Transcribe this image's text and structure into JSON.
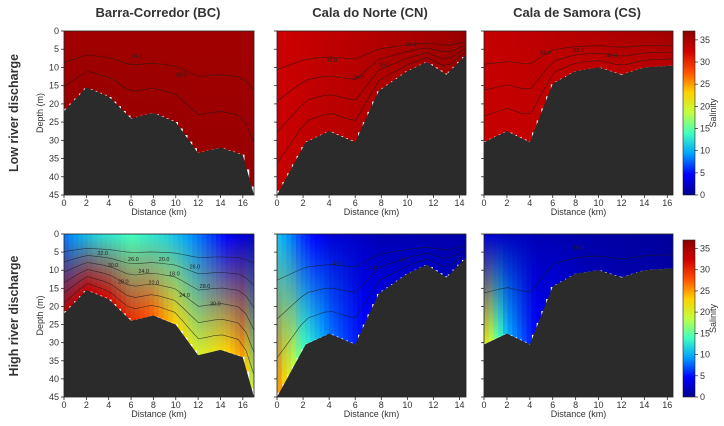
{
  "column_titles": [
    "Barra-Corredor (BC)",
    "Cala do Norte (CN)",
    "Cala de Samora (CS)"
  ],
  "row_labels": [
    "Low river discharge",
    "High river discharge"
  ],
  "colorbar": {
    "label": "Salinity",
    "ticks": [
      0,
      5,
      10,
      15,
      20,
      25,
      30,
      35
    ],
    "range": [
      0,
      37
    ],
    "colormap": [
      "#00008f",
      "#0000ff",
      "#00a0ff",
      "#40ffc0",
      "#c0ff40",
      "#ffd000",
      "#ff5000",
      "#d00000",
      "#8b0000"
    ]
  },
  "axes": {
    "xlabel": "Distance (km)",
    "ylabel": "Depth (m)",
    "ylim": [
      0,
      45
    ],
    "y_ticks": [
      0,
      5,
      10,
      15,
      20,
      25,
      30,
      35,
      40,
      45
    ],
    "bathymetry_color": "#2b2b2b"
  },
  "chart_data": [
    {
      "type": "heatmap",
      "section": "Barra-Corredor (BC)",
      "discharge": "Low river discharge",
      "xlim": [
        0,
        17
      ],
      "x_ticks": [
        0,
        2,
        4,
        6,
        8,
        10,
        12,
        14,
        16
      ],
      "bathymetry": {
        "x": [
          0,
          2,
          4,
          6,
          8,
          10,
          12,
          14,
          16,
          17
        ],
        "depth": [
          22,
          15.5,
          18,
          24,
          22.5,
          25,
          33.5,
          32,
          34,
          45
        ]
      },
      "salinity_surface": {
        "x": [
          0,
          17
        ],
        "values": [
          35.5,
          35.5
        ]
      },
      "salinity_bottom": {
        "x": [
          0,
          17
        ],
        "values": [
          36,
          36
        ]
      },
      "contour_labels": [
        "34.0",
        "34.0"
      ]
    },
    {
      "type": "heatmap",
      "section": "Cala do Norte (CN)",
      "discharge": "Low river discharge",
      "xlim": [
        0,
        14.5
      ],
      "x_ticks": [
        0,
        2,
        4,
        6,
        8,
        10,
        12,
        14
      ],
      "bathymetry": {
        "x": [
          0,
          2.2,
          4,
          6,
          7.8,
          10,
          11.5,
          13,
          14.5
        ],
        "depth": [
          45,
          30.5,
          27.5,
          30.5,
          16.5,
          11,
          8.5,
          12,
          6.5
        ]
      },
      "salinity_surface": {
        "x": [
          0,
          14.5
        ],
        "values": [
          32.5,
          36
        ]
      },
      "salinity_bottom": {
        "x": [
          0,
          14.5
        ],
        "values": [
          33,
          36
        ]
      },
      "contour_labels": [
        "33.0",
        "34.0",
        "35.0",
        "36.0"
      ]
    },
    {
      "type": "heatmap",
      "section": "Cala de Samora (CS)",
      "discharge": "Low river discharge",
      "xlim": [
        0,
        16.5
      ],
      "x_ticks": [
        0,
        2,
        4,
        6,
        8,
        10,
        12,
        14,
        16
      ],
      "bathymetry": {
        "x": [
          0,
          2,
          4,
          6,
          8,
          10,
          12,
          14,
          16.5
        ],
        "depth": [
          30.5,
          27.5,
          30.5,
          14.5,
          11,
          10,
          12,
          10,
          9.5
        ]
      },
      "salinity_surface": {
        "x": [
          0,
          16.5
        ],
        "values": [
          33,
          35.5
        ]
      },
      "salinity_bottom": {
        "x": [
          0,
          16.5
        ],
        "values": [
          33,
          34
        ]
      },
      "contour_labels": [
        "34.0",
        "33.0",
        "35.0"
      ]
    },
    {
      "type": "heatmap",
      "section": "Barra-Corredor (BC)",
      "discharge": "High river discharge",
      "xlim": [
        0,
        17
      ],
      "x_ticks": [
        0,
        2,
        4,
        6,
        8,
        10,
        12,
        14,
        16
      ],
      "bathymetry": {
        "x": [
          0,
          2,
          4,
          6,
          8,
          10,
          12,
          14,
          16,
          17
        ],
        "depth": [
          22,
          15.5,
          18,
          24,
          22.5,
          25,
          33.5,
          32,
          34,
          45
        ]
      },
      "salinity_surface": {
        "x": [
          0,
          3,
          6,
          9,
          12,
          15,
          17
        ],
        "values": [
          8,
          12,
          14,
          12,
          8,
          4,
          2
        ]
      },
      "salinity_bottom": {
        "x": [
          0,
          2,
          4,
          6,
          8,
          10,
          12,
          14,
          16,
          17
        ],
        "values": [
          34,
          33,
          32,
          30,
          27,
          23,
          20,
          22,
          25,
          18
        ]
      },
      "contour_labels": [
        "32.0",
        "30.0",
        "28.0",
        "26.0",
        "24.0",
        "22.0",
        "20.0",
        "18.0",
        "24.0",
        "26.0",
        "28.0",
        "30.0"
      ]
    },
    {
      "type": "heatmap",
      "section": "Cala do Norte (CN)",
      "discharge": "High river discharge",
      "xlim": [
        0,
        14.5
      ],
      "x_ticks": [
        0,
        2,
        4,
        6,
        8,
        10,
        12,
        14
      ],
      "bathymetry": {
        "x": [
          0,
          2.2,
          4,
          6,
          7.8,
          10,
          11.5,
          13,
          14.5
        ],
        "depth": [
          45,
          30.5,
          27.5,
          30.5,
          16.5,
          11,
          8.5,
          12,
          6.5
        ]
      },
      "salinity_surface": {
        "x": [
          0,
          2,
          4,
          8,
          14.5
        ],
        "values": [
          11,
          6,
          3,
          1.5,
          1
        ]
      },
      "salinity_bottom": {
        "x": [
          0,
          2,
          4,
          8,
          14.5
        ],
        "values": [
          26,
          14,
          8,
          3,
          1.5
        ]
      },
      "contour_labels": [
        "12.0",
        "14.0",
        "26.0"
      ]
    },
    {
      "type": "heatmap",
      "section": "Cala de Samora (CS)",
      "discharge": "High river discharge",
      "xlim": [
        0,
        16.5
      ],
      "x_ticks": [
        0,
        2,
        4,
        6,
        8,
        10,
        12,
        14,
        16
      ],
      "bathymetry": {
        "x": [
          0,
          2,
          4,
          6,
          8,
          10,
          12,
          14,
          16.5
        ],
        "depth": [
          30.5,
          27.5,
          30.5,
          14.5,
          11,
          10,
          12,
          10,
          9.5
        ]
      },
      "salinity_surface": {
        "x": [
          0,
          2,
          5,
          9,
          16.5
        ],
        "values": [
          3,
          2,
          1.5,
          1,
          0.5
        ]
      },
      "salinity_bottom": {
        "x": [
          0,
          2,
          5,
          9,
          16.5
        ],
        "values": [
          22,
          10,
          3.5,
          1.5,
          0.8
        ]
      },
      "contour_labels": [
        "10.0"
      ]
    }
  ]
}
